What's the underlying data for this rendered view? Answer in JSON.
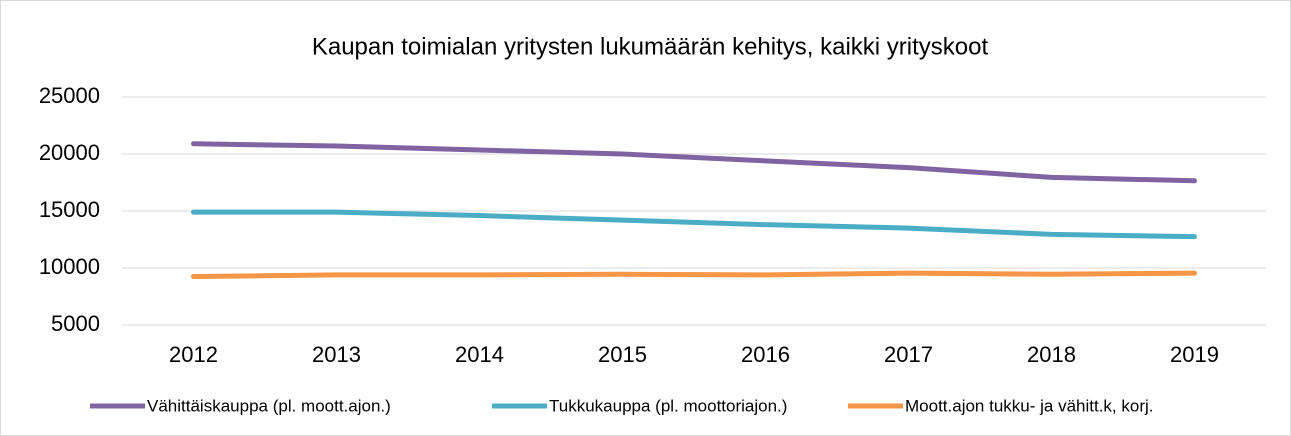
{
  "chart_data": {
    "type": "line",
    "title": "Kaupan toimialan yritysten lukumäärän kehitys, kaikki yrityskoot",
    "categories": [
      "2012",
      "2013",
      "2014",
      "2015",
      "2016",
      "2017",
      "2018",
      "2019"
    ],
    "series": [
      {
        "name": "Vähittäiskauppa (pl. moott.ajon.)",
        "color": "#8064a2",
        "values": [
          20900,
          20700,
          20350,
          20000,
          19400,
          18800,
          17950,
          17650
        ]
      },
      {
        "name": "Tukkukauppa (pl. moottoriajon.)",
        "color": "#4bacc6",
        "values": [
          14900,
          14900,
          14600,
          14200,
          13800,
          13500,
          12950,
          12750
        ]
      },
      {
        "name": "Moott.ajon tukku- ja vähitt.k, korj.",
        "color": "#f79646",
        "values": [
          9250,
          9400,
          9400,
          9450,
          9400,
          9550,
          9450,
          9550
        ]
      }
    ],
    "ylim": [
      5000,
      25000
    ],
    "yticks": [
      5000,
      10000,
      15000,
      20000,
      25000
    ],
    "grid": true,
    "legend": "bottom"
  }
}
